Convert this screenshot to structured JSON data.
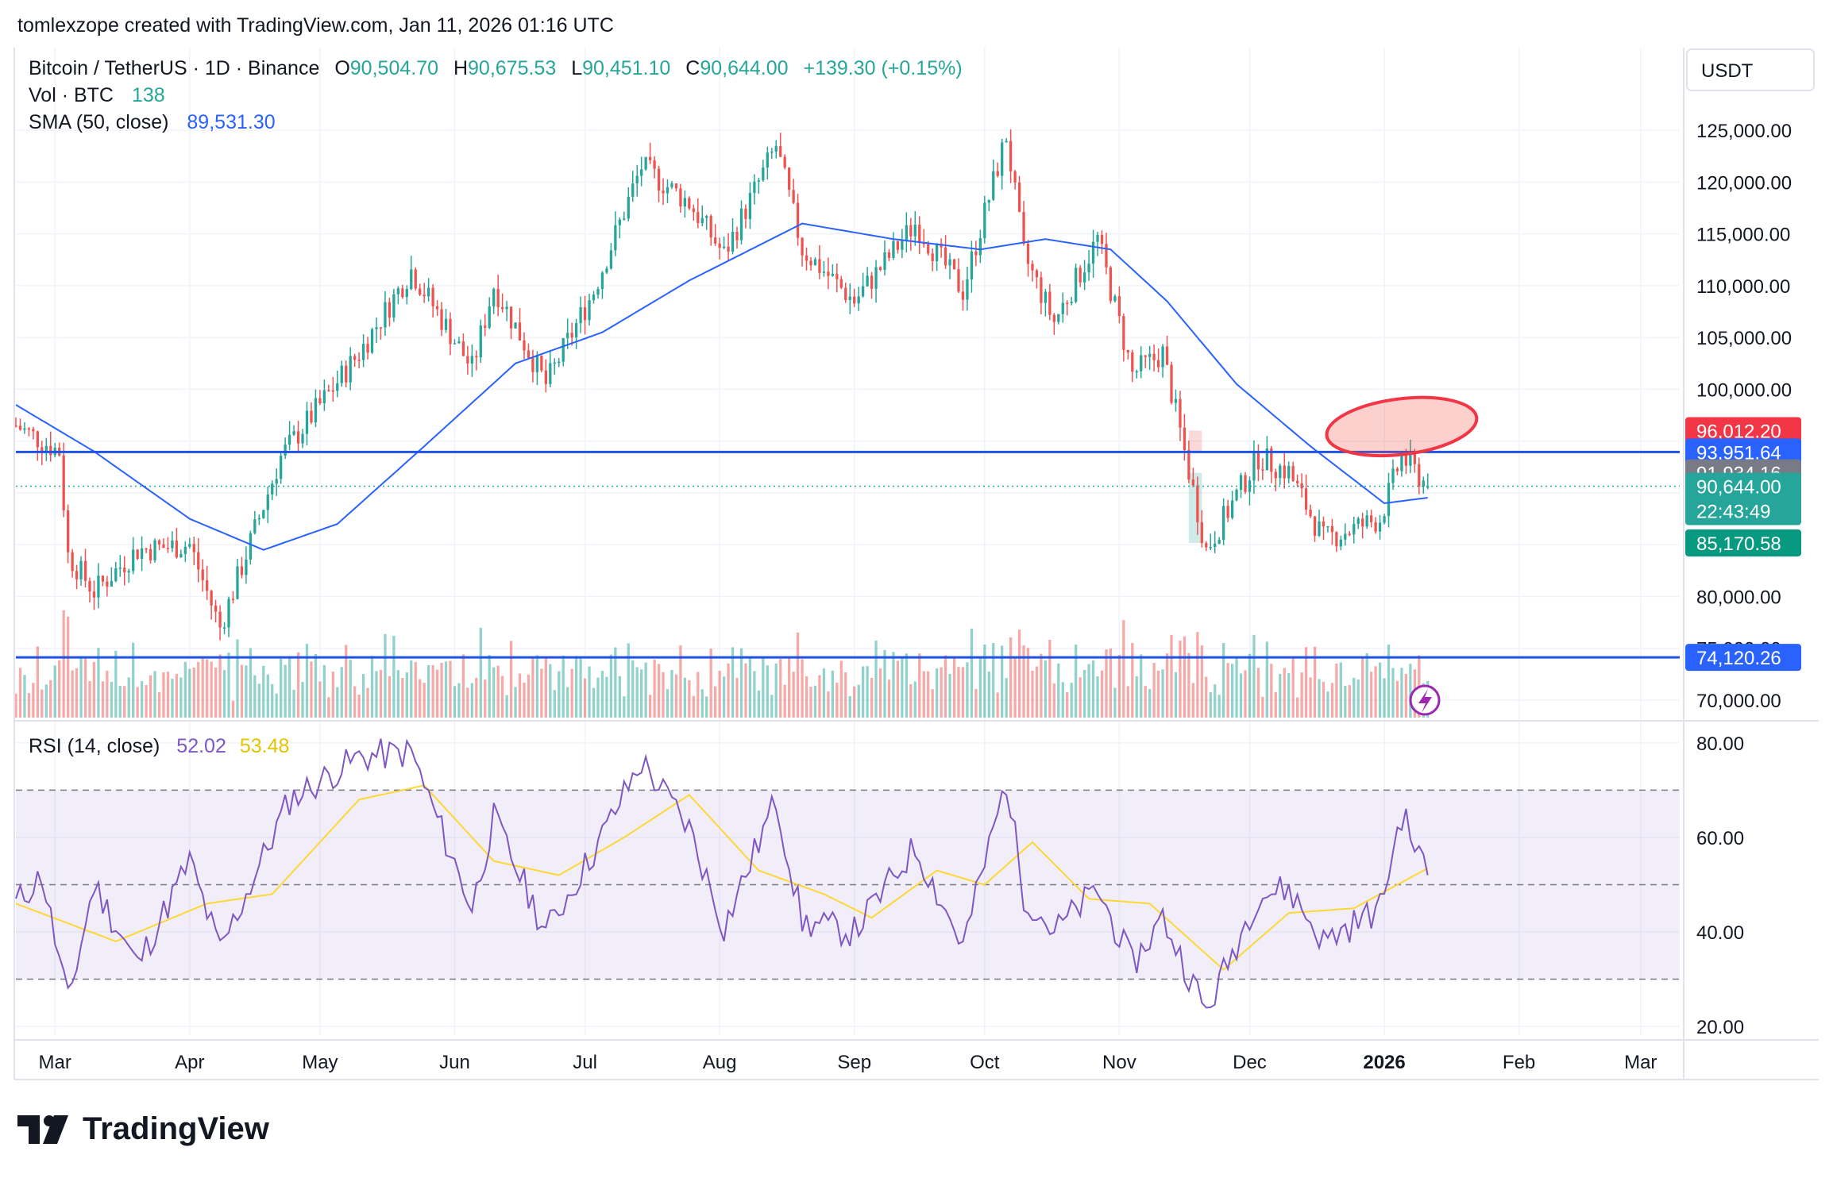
{
  "header": {
    "creator_line": "tomlexzope created with TradingView.com, Jan 11, 2026 01:16 UTC"
  },
  "legend": {
    "symbol": "Bitcoin / TetherUS · 1D · Binance",
    "o_label": "O",
    "o_value": "90,504.70",
    "h_label": "H",
    "h_value": "90,675.53",
    "l_label": "L",
    "l_value": "90,451.10",
    "c_label": "C",
    "c_value": "90,644.00",
    "change": "+139.30 (+0.15%)",
    "vol_label": "Vol · BTC",
    "vol_value": "138",
    "sma_label": "SMA (50, close)",
    "sma_value": "89,531.30"
  },
  "rsi_legend": {
    "label": "RSI (14, close)",
    "rsi_value": "52.02",
    "rsi_ma_value": "53.48"
  },
  "price_scale": {
    "currency": "USDT",
    "ticks": [
      "125,000.00",
      "120,000.00",
      "115,000.00",
      "110,000.00",
      "105,000.00",
      "100,000.00",
      "80,000.00",
      "75,000.00",
      "70,000.00"
    ],
    "badges": {
      "b96012": "96,012.20",
      "b93951": "93,951.64",
      "b91934": "91,934.16",
      "last": "90,644.00",
      "countdown": "22:43:49",
      "b85170": "85,170.58",
      "b74120": "74,120.26"
    }
  },
  "rsi_scale": {
    "ticks": [
      "80.00",
      "60.00",
      "40.00",
      "20.00"
    ]
  },
  "time_axis": {
    "labels": [
      "Mar",
      "Apr",
      "May",
      "Jun",
      "Jul",
      "Aug",
      "Sep",
      "Oct",
      "Nov",
      "Dec",
      "2026",
      "Feb",
      "Mar"
    ]
  },
  "brand": {
    "name": "TradingView"
  },
  "colors": {
    "up": "#26a69a",
    "down": "#ef5350",
    "sma": "#2962ff",
    "rsi": "#7e57c2",
    "rsi_ma": "#fdd835",
    "hline": "#1e53e5"
  },
  "chart_data": [
    {
      "type": "candlestick",
      "title": "Bitcoin / TetherUS · 1D · Binance",
      "interval": "1D",
      "x_range": [
        "2025-02-20",
        "2026-03-10"
      ],
      "ylim": [
        69000,
        128000
      ],
      "price_anchors": [
        {
          "date": "2025-02-20",
          "close": 96500
        },
        {
          "date": "2025-03-02",
          "close": 94000
        },
        {
          "date": "2025-03-04",
          "close": 84000
        },
        {
          "date": "2025-03-10",
          "close": 80500
        },
        {
          "date": "2025-03-20",
          "close": 84500
        },
        {
          "date": "2025-04-01",
          "close": 85000
        },
        {
          "date": "2025-04-08",
          "close": 77000
        },
        {
          "date": "2025-04-22",
          "close": 93500
        },
        {
          "date": "2025-05-10",
          "close": 103500
        },
        {
          "date": "2025-05-22",
          "close": 111500
        },
        {
          "date": "2025-06-05",
          "close": 102000
        },
        {
          "date": "2025-06-10",
          "close": 110000
        },
        {
          "date": "2025-06-22",
          "close": 100500
        },
        {
          "date": "2025-07-03",
          "close": 109500
        },
        {
          "date": "2025-07-14",
          "close": 121500
        },
        {
          "date": "2025-07-25",
          "close": 118000
        },
        {
          "date": "2025-08-02",
          "close": 113000
        },
        {
          "date": "2025-08-14",
          "close": 123500
        },
        {
          "date": "2025-08-20",
          "close": 113500
        },
        {
          "date": "2025-09-01",
          "close": 108500
        },
        {
          "date": "2025-09-15",
          "close": 116000
        },
        {
          "date": "2025-09-26",
          "close": 109500
        },
        {
          "date": "2025-10-06",
          "close": 124500
        },
        {
          "date": "2025-10-10",
          "close": 113000
        },
        {
          "date": "2025-10-17",
          "close": 106500
        },
        {
          "date": "2025-10-27",
          "close": 114500
        },
        {
          "date": "2025-11-04",
          "close": 101500
        },
        {
          "date": "2025-11-11",
          "close": 103500
        },
        {
          "date": "2025-11-21",
          "close": 84500
        },
        {
          "date": "2025-12-03",
          "close": 93500
        },
        {
          "date": "2025-12-10",
          "close": 92000
        },
        {
          "date": "2025-12-18",
          "close": 85500
        },
        {
          "date": "2025-12-31",
          "close": 87500
        },
        {
          "date": "2026-01-05",
          "close": 93500
        },
        {
          "date": "2026-01-11",
          "close": 90644
        }
      ],
      "last": {
        "date": "2026-01-11",
        "open": 90504.7,
        "high": 90675.53,
        "low": 90451.1,
        "close": 90644.0
      },
      "sma50_anchors": [
        {
          "date": "2025-02-20",
          "value": 98500
        },
        {
          "date": "2025-03-10",
          "value": 94000
        },
        {
          "date": "2025-04-01",
          "value": 87500
        },
        {
          "date": "2025-04-18",
          "value": 84500
        },
        {
          "date": "2025-05-05",
          "value": 87000
        },
        {
          "date": "2025-05-25",
          "value": 94500
        },
        {
          "date": "2025-06-15",
          "value": 102500
        },
        {
          "date": "2025-07-05",
          "value": 105500
        },
        {
          "date": "2025-07-25",
          "value": 110500
        },
        {
          "date": "2025-08-20",
          "value": 116000
        },
        {
          "date": "2025-09-10",
          "value": 114500
        },
        {
          "date": "2025-09-30",
          "value": 113500
        },
        {
          "date": "2025-10-15",
          "value": 114500
        },
        {
          "date": "2025-10-30",
          "value": 113500
        },
        {
          "date": "2025-11-12",
          "value": 108500
        },
        {
          "date": "2025-11-28",
          "value": 100500
        },
        {
          "date": "2025-12-15",
          "value": 94500
        },
        {
          "date": "2026-01-01",
          "value": 89000
        },
        {
          "date": "2026-01-11",
          "value": 89531.3
        }
      ],
      "horizontal_lines": [
        93951.64,
        74120.26
      ],
      "price_levels": [
        96012.2,
        93951.64,
        91934.16,
        90644.0,
        85170.58,
        74120.26
      ],
      "highlight_zones": [
        {
          "from": "2025-11-17",
          "to": "2025-11-20",
          "low": 93951.64,
          "high": 96012.2,
          "color": "red"
        },
        {
          "from": "2025-11-17",
          "to": "2025-11-20",
          "low": 85170.58,
          "high": 91934.16,
          "color": "green"
        }
      ],
      "ellipse_annotation": {
        "center_date": "2026-01-05",
        "center_price": 96400,
        "color": "red"
      }
    },
    {
      "type": "bar",
      "title": "Vol · BTC",
      "last_value": 138
    },
    {
      "type": "line",
      "title": "RSI (14, close)",
      "ylim": [
        18,
        83
      ],
      "bands": [
        30,
        50,
        70
      ],
      "rsi_anchors": [
        {
          "date": "2025-02-20",
          "value": 46
        },
        {
          "date": "2025-02-26",
          "value": 52
        },
        {
          "date": "2025-03-04",
          "value": 25
        },
        {
          "date": "2025-03-10",
          "value": 50
        },
        {
          "date": "2025-03-20",
          "value": 33
        },
        {
          "date": "2025-04-01",
          "value": 55
        },
        {
          "date": "2025-04-08",
          "value": 36
        },
        {
          "date": "2025-04-24",
          "value": 68
        },
        {
          "date": "2025-05-10",
          "value": 77
        },
        {
          "date": "2025-05-22",
          "value": 78
        },
        {
          "date": "2025-06-05",
          "value": 45
        },
        {
          "date": "2025-06-10",
          "value": 64
        },
        {
          "date": "2025-06-22",
          "value": 40
        },
        {
          "date": "2025-07-03",
          "value": 57
        },
        {
          "date": "2025-07-14",
          "value": 76
        },
        {
          "date": "2025-07-25",
          "value": 62
        },
        {
          "date": "2025-08-02",
          "value": 41
        },
        {
          "date": "2025-08-14",
          "value": 68
        },
        {
          "date": "2025-08-20",
          "value": 42
        },
        {
          "date": "2025-09-01",
          "value": 40
        },
        {
          "date": "2025-09-15",
          "value": 58
        },
        {
          "date": "2025-09-26",
          "value": 37
        },
        {
          "date": "2025-10-06",
          "value": 72
        },
        {
          "date": "2025-10-10",
          "value": 48
        },
        {
          "date": "2025-10-17",
          "value": 40
        },
        {
          "date": "2025-10-27",
          "value": 49
        },
        {
          "date": "2025-11-04",
          "value": 33
        },
        {
          "date": "2025-11-11",
          "value": 43
        },
        {
          "date": "2025-11-21",
          "value": 23
        },
        {
          "date": "2025-12-03",
          "value": 48
        },
        {
          "date": "2025-12-10",
          "value": 49
        },
        {
          "date": "2025-12-18",
          "value": 38
        },
        {
          "date": "2025-12-31",
          "value": 45
        },
        {
          "date": "2026-01-05",
          "value": 65
        },
        {
          "date": "2026-01-11",
          "value": 52.02
        }
      ],
      "rsi_ma_anchors": [
        {
          "date": "2025-02-20",
          "value": 46
        },
        {
          "date": "2025-03-15",
          "value": 38
        },
        {
          "date": "2025-04-05",
          "value": 46
        },
        {
          "date": "2025-04-20",
          "value": 48
        },
        {
          "date": "2025-05-10",
          "value": 68
        },
        {
          "date": "2025-05-25",
          "value": 71
        },
        {
          "date": "2025-06-10",
          "value": 55
        },
        {
          "date": "2025-06-25",
          "value": 52
        },
        {
          "date": "2025-07-10",
          "value": 60
        },
        {
          "date": "2025-07-25",
          "value": 69
        },
        {
          "date": "2025-08-10",
          "value": 53
        },
        {
          "date": "2025-08-25",
          "value": 48
        },
        {
          "date": "2025-09-05",
          "value": 43
        },
        {
          "date": "2025-09-20",
          "value": 53
        },
        {
          "date": "2025-10-01",
          "value": 50
        },
        {
          "date": "2025-10-12",
          "value": 59
        },
        {
          "date": "2025-10-25",
          "value": 47
        },
        {
          "date": "2025-11-08",
          "value": 46
        },
        {
          "date": "2025-11-25",
          "value": 32
        },
        {
          "date": "2025-12-10",
          "value": 44
        },
        {
          "date": "2025-12-25",
          "value": 45
        },
        {
          "date": "2026-01-11",
          "value": 53.48
        }
      ]
    }
  ]
}
